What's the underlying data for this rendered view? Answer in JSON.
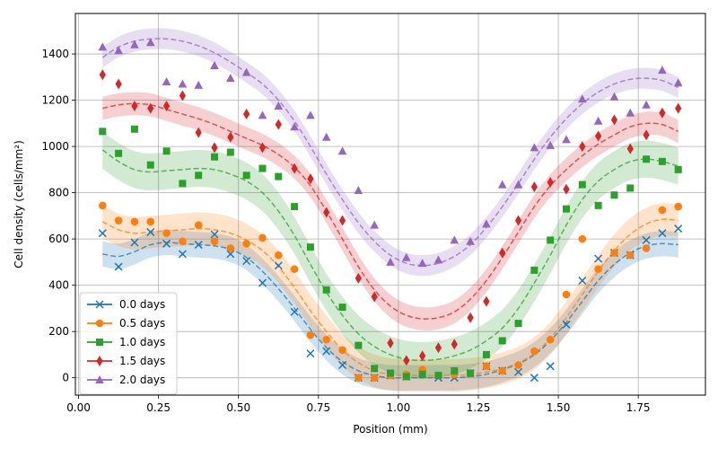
{
  "chart_data": {
    "type": "scatter",
    "title": "",
    "xlabel": "Position (mm)",
    "ylabel": "Cell density (cells/mm²)",
    "xlim": [
      -0.01,
      1.96
    ],
    "ylim": [
      -75,
      1575
    ],
    "xticks": [
      0.0,
      0.25,
      0.5,
      0.75,
      1.0,
      1.25,
      1.5,
      1.75
    ],
    "xtick_labels": [
      "0.00",
      "0.25",
      "0.50",
      "0.75",
      "1.00",
      "1.25",
      "1.50",
      "1.75"
    ],
    "yticks": [
      0,
      200,
      400,
      600,
      800,
      1000,
      1200,
      1400
    ],
    "ytick_labels": [
      "0",
      "200",
      "400",
      "600",
      "800",
      "1000",
      "1200",
      "1400"
    ],
    "grid": true,
    "legend_position": "lower-left",
    "x": [
      0.075,
      0.125,
      0.175,
      0.225,
      0.275,
      0.325,
      0.375,
      0.425,
      0.475,
      0.525,
      0.575,
      0.625,
      0.675,
      0.725,
      0.775,
      0.825,
      0.875,
      0.925,
      0.975,
      1.025,
      1.075,
      1.125,
      1.175,
      1.225,
      1.275,
      1.325,
      1.375,
      1.425,
      1.475,
      1.525,
      1.575,
      1.625,
      1.675,
      1.725,
      1.775,
      1.825,
      1.875
    ],
    "series": [
      {
        "name": "0.0 days",
        "color": "#1f77b4",
        "marker": "x",
        "points": [
          625,
          480,
          585,
          630,
          580,
          535,
          575,
          620,
          535,
          505,
          410,
          485,
          285,
          105,
          115,
          55,
          0,
          0,
          10,
          5,
          20,
          0,
          0,
          20,
          50,
          30,
          25,
          0,
          50,
          230,
          420,
          515,
          540,
          530,
          595,
          625,
          645
        ],
        "fit": [
          535,
          525,
          545,
          575,
          585,
          580,
          575,
          570,
          555,
          520,
          460,
          385,
          300,
          210,
          130,
          70,
          30,
          10,
          0,
          0,
          0,
          0,
          0,
          5,
          15,
          35,
          60,
          100,
          160,
          240,
          330,
          420,
          490,
          540,
          570,
          580,
          575
        ],
        "band": 55
      },
      {
        "name": "0.5 days",
        "color": "#ff7f0e",
        "marker": "o",
        "points": [
          745,
          680,
          675,
          675,
          625,
          590,
          660,
          590,
          560,
          580,
          605,
          530,
          470,
          185,
          165,
          120,
          0,
          0,
          10,
          15,
          35,
          10,
          15,
          20,
          50,
          30,
          55,
          115,
          165,
          360,
          600,
          470,
          540,
          530,
          560,
          725,
          740
        ],
        "fit": [
          675,
          640,
          625,
          630,
          635,
          640,
          645,
          640,
          625,
          595,
          550,
          480,
          390,
          290,
          200,
          120,
          65,
          30,
          15,
          10,
          10,
          10,
          10,
          15,
          25,
          40,
          65,
          105,
          170,
          260,
          360,
          460,
          550,
          620,
          665,
          685,
          680
        ],
        "band": 70
      },
      {
        "name": "1.0 days",
        "color": "#2ca02c",
        "marker": "s",
        "points": [
          1065,
          970,
          1075,
          920,
          980,
          840,
          875,
          955,
          975,
          875,
          905,
          870,
          740,
          565,
          380,
          305,
          140,
          40,
          20,
          5,
          15,
          10,
          30,
          20,
          100,
          160,
          235,
          465,
          595,
          730,
          835,
          745,
          790,
          820,
          945,
          935,
          900
        ],
        "fit": [
          985,
          935,
          900,
          890,
          895,
          900,
          905,
          900,
          880,
          850,
          800,
          720,
          615,
          490,
          370,
          270,
          190,
          135,
          100,
          80,
          75,
          80,
          95,
          120,
          160,
          215,
          300,
          410,
          530,
          660,
          770,
          850,
          900,
          935,
          945,
          935,
          915
        ],
        "band": 80
      },
      {
        "name": "1.5 days",
        "color": "#d62728",
        "marker": "d",
        "points": [
          1310,
          1270,
          1175,
          1165,
          1175,
          1220,
          1060,
          995,
          1040,
          1140,
          995,
          1095,
          905,
          860,
          715,
          680,
          430,
          350,
          150,
          75,
          95,
          130,
          145,
          260,
          330,
          540,
          680,
          825,
          845,
          815,
          1000,
          1045,
          1115,
          990,
          1050,
          1145,
          1165
        ],
        "fit": [
          1165,
          1180,
          1185,
          1180,
          1160,
          1140,
          1120,
          1095,
          1065,
          1035,
          1005,
          965,
          910,
          830,
          720,
          600,
          480,
          380,
          310,
          270,
          255,
          260,
          285,
          340,
          420,
          520,
          630,
          740,
          830,
          900,
          960,
          1010,
          1050,
          1085,
          1100,
          1095,
          1065
        ],
        "band": 50
      },
      {
        "name": "2.0 days",
        "color": "#9467bd",
        "marker": "^",
        "points": [
          1430,
          1415,
          1440,
          1450,
          1280,
          1270,
          1265,
          1350,
          1295,
          1320,
          1135,
          1175,
          1085,
          1135,
          1040,
          980,
          810,
          660,
          500,
          520,
          495,
          510,
          595,
          590,
          665,
          835,
          835,
          995,
          1005,
          1030,
          1205,
          1110,
          1215,
          1145,
          1180,
          1330,
          1275
        ],
        "fit": [
          1385,
          1430,
          1455,
          1465,
          1465,
          1455,
          1435,
          1405,
          1365,
          1320,
          1270,
          1200,
          1110,
          1000,
          880,
          770,
          670,
          590,
          530,
          495,
          485,
          495,
          525,
          575,
          650,
          740,
          840,
          945,
          1040,
          1120,
          1185,
          1235,
          1270,
          1290,
          1295,
          1285,
          1255
        ],
        "band": 45
      }
    ]
  }
}
